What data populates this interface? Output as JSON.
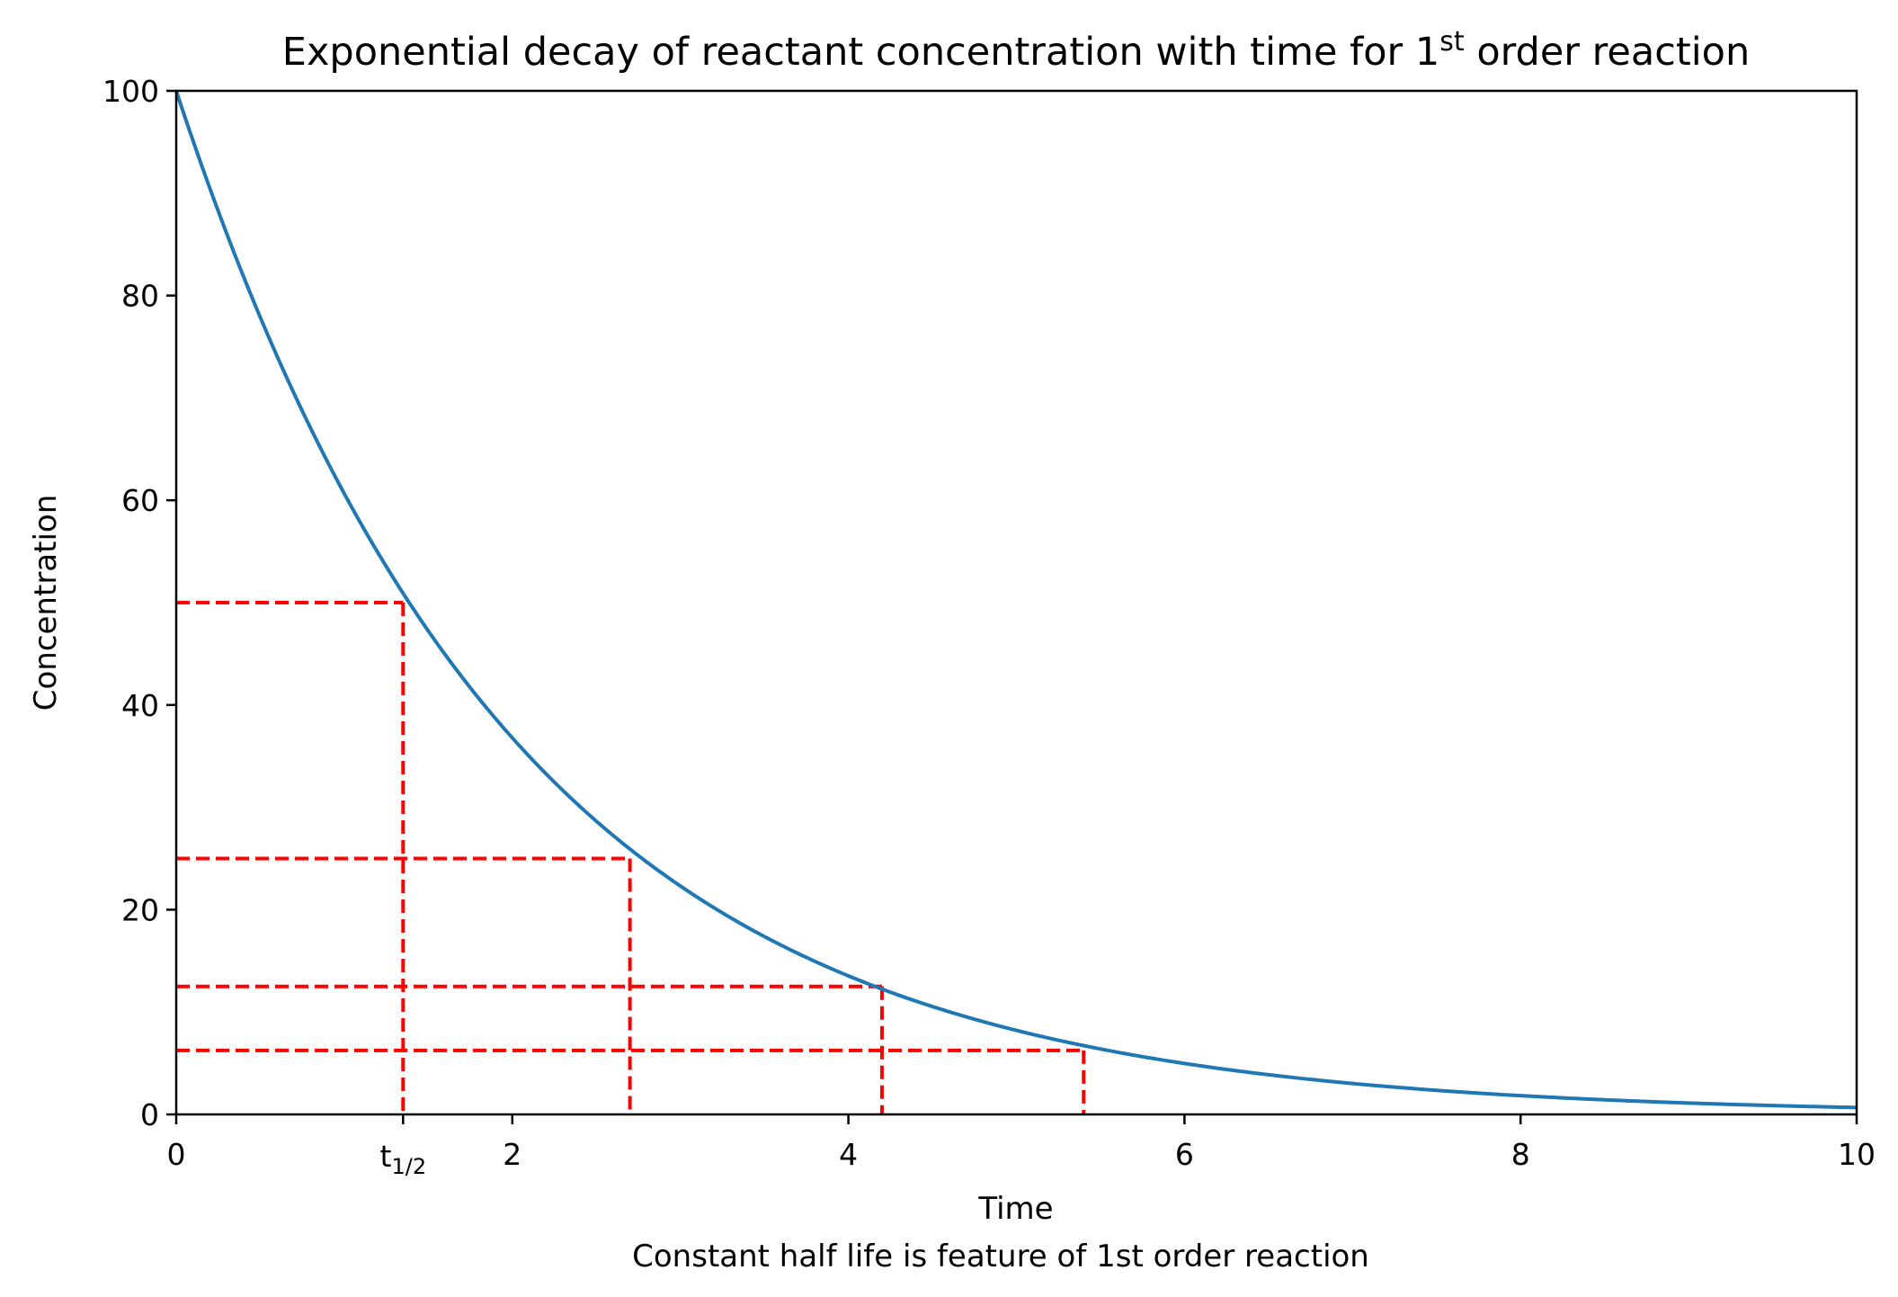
{
  "chart_data": {
    "type": "line",
    "title": {
      "before": "Exponential decay of reactant concentration with time for 1",
      "superscript": "st",
      "after": " order reaction"
    },
    "xlabel": "Time",
    "ylabel": "Concentration",
    "caption": "Constant half life is feature of 1st order reaction",
    "xlim": [
      0,
      10
    ],
    "ylim": [
      0,
      100
    ],
    "x_ticks": [
      0,
      2,
      4,
      6,
      8,
      10
    ],
    "y_ticks": [
      0,
      20,
      40,
      60,
      80,
      100
    ],
    "special_x_tick": {
      "x": 1.35,
      "base": "t",
      "subscript": "1/2"
    },
    "grid": false,
    "legend": "none",
    "series": [
      {
        "color": "#1f77b4",
        "function": "100*exp(-0.5*x)",
        "points": [
          [
            0,
            100
          ],
          [
            1,
            60.65
          ],
          [
            2,
            36.79
          ],
          [
            3,
            22.31
          ],
          [
            4,
            13.53
          ],
          [
            5,
            8.21
          ],
          [
            6,
            4.98
          ],
          [
            7,
            3.02
          ],
          [
            8,
            1.83
          ],
          [
            9,
            1.11
          ],
          [
            10,
            0.67
          ]
        ]
      }
    ],
    "half_life_markers": {
      "color": "#ff0000",
      "style": "dashed",
      "points": [
        {
          "x": 1.35,
          "y": 50
        },
        {
          "x": 2.7,
          "y": 25
        },
        {
          "x": 4.2,
          "y": 12.5
        },
        {
          "x": 5.4,
          "y": 6.25
        }
      ]
    }
  }
}
